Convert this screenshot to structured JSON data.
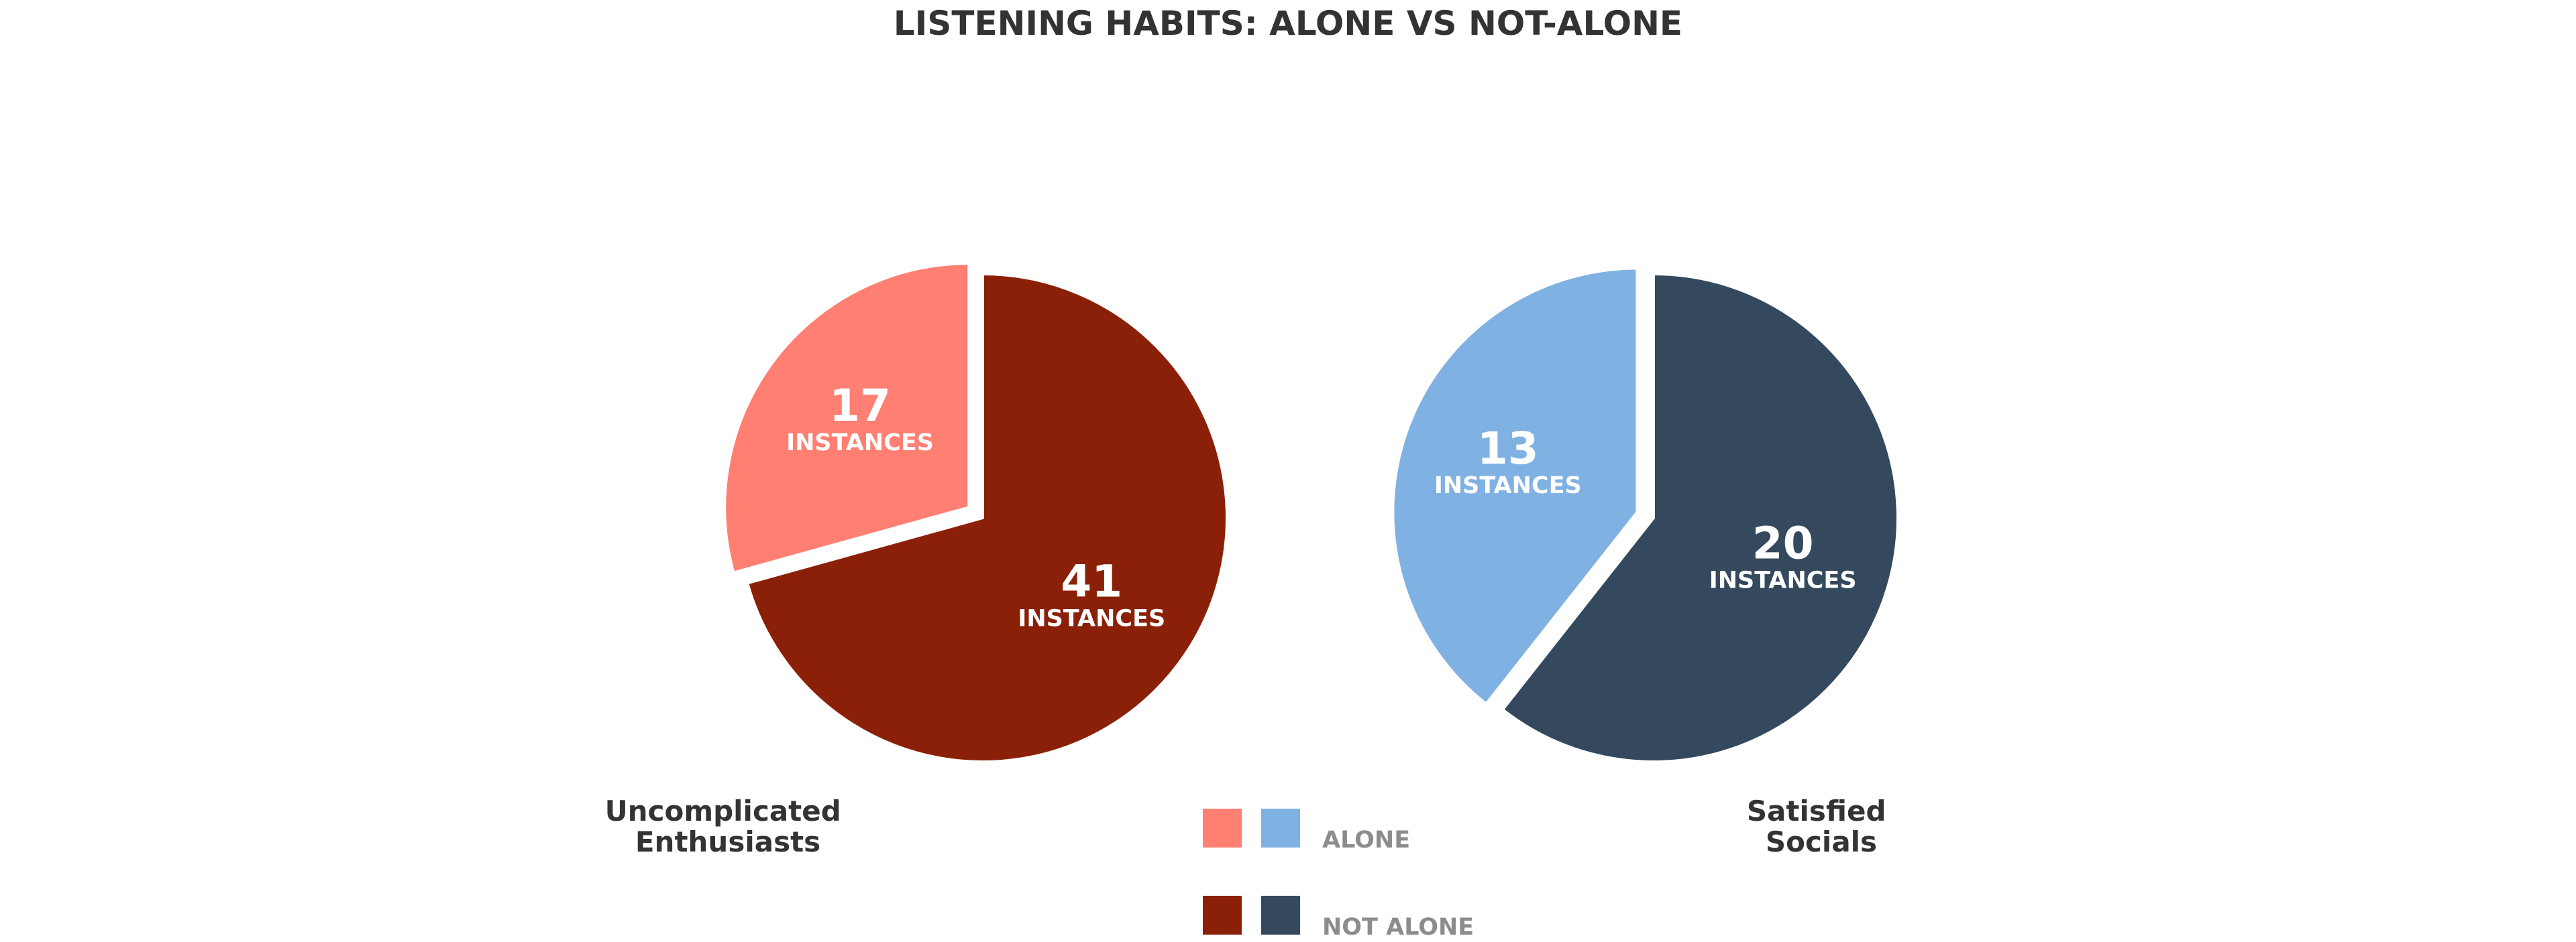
{
  "chart_data": {
    "type": "pie",
    "title": "LISTENING HABITS: ALONE VS NOT-ALONE",
    "unit_label": "INSTANCES",
    "legend": {
      "placement": "bottom-center",
      "entries": [
        {
          "label": "ALONE",
          "colors": [
            "#ff7f72",
            "#80b1e3"
          ]
        },
        {
          "label": "NOT ALONE",
          "colors": [
            "#8b2009",
            "#34495e"
          ]
        }
      ]
    },
    "pies": [
      {
        "label_lines": [
          "Uncomplicated",
          "Enthusiasts"
        ],
        "slices": [
          {
            "name": "ALONE",
            "value": 17,
            "color": "#ff7f72"
          },
          {
            "name": "NOT ALONE",
            "value": 41,
            "color": "#8b2009"
          }
        ]
      },
      {
        "label_lines": [
          "Satisfied",
          "Socials"
        ],
        "slices": [
          {
            "name": "ALONE",
            "value": 13,
            "color": "#80b1e3"
          },
          {
            "name": "NOT ALONE",
            "value": 20,
            "color": "#34495e"
          }
        ]
      }
    ]
  }
}
